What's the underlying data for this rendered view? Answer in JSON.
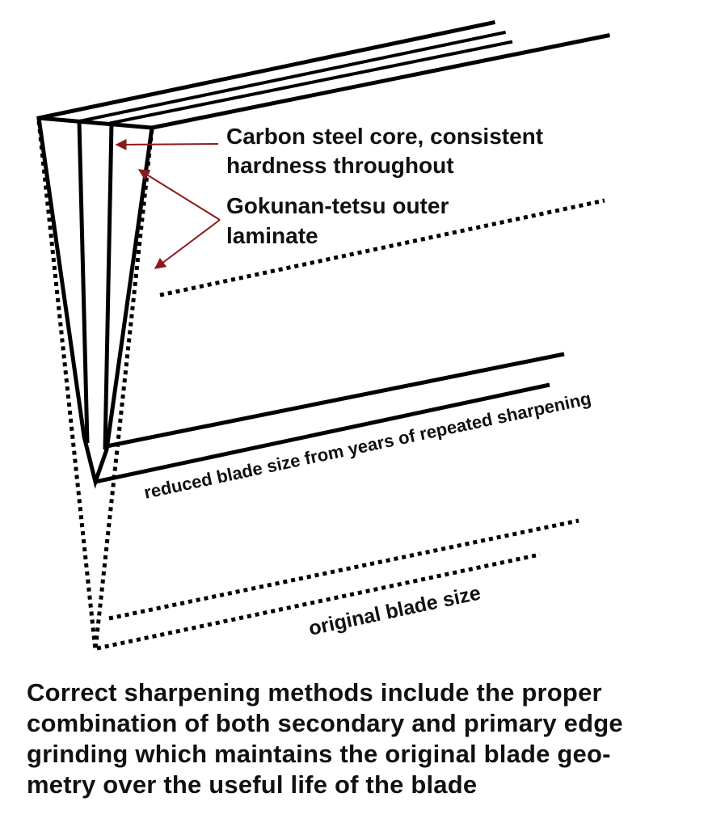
{
  "labels": {
    "core_line1": "Carbon steel core, consistent",
    "core_line2": "hardness throughout",
    "laminate_line1": "Gokunan-tetsu outer",
    "laminate_line2": "laminate",
    "reduced": "reduced blade size from years of repeated sharpening",
    "original": "original blade size"
  },
  "caption": {
    "line1": "Correct sharpening methods include the proper",
    "line2": "combination of both secondary and primary edge",
    "line3": "grinding which maintains the original blade geo-",
    "line4": "metry over the useful life of the blade"
  },
  "colors": {
    "outline": "#000000",
    "arrow": "#8b1a1a",
    "text": "#111111"
  }
}
